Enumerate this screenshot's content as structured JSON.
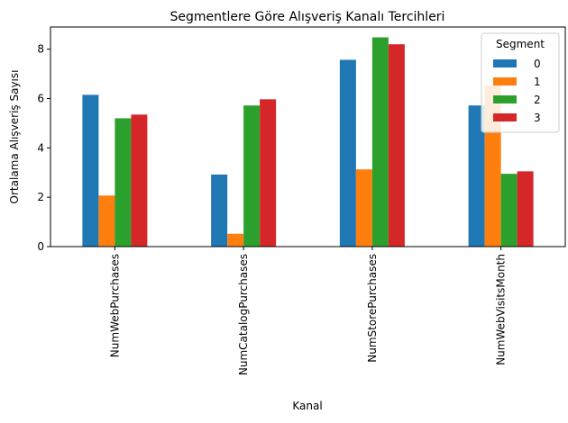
{
  "chart_data": {
    "type": "bar",
    "title": "Segmentlere Göre Alışveriş Kanalı Tercihleri",
    "xlabel": "Kanal",
    "ylabel": "Ortalama Alışveriş Sayısı",
    "categories": [
      "NumWebPurchases",
      "NumCatalogPurchases",
      "NumStorePurchases",
      "NumWebVisitsMonth"
    ],
    "series": [
      {
        "name": "0",
        "color": "#1f77b4",
        "values": [
          6.15,
          2.92,
          7.57,
          5.72
        ]
      },
      {
        "name": "1",
        "color": "#ff7f0e",
        "values": [
          2.07,
          0.52,
          3.13,
          6.52
        ]
      },
      {
        "name": "2",
        "color": "#2ca02c",
        "values": [
          5.2,
          5.72,
          8.48,
          2.95
        ]
      },
      {
        "name": "3",
        "color": "#d62728",
        "values": [
          5.35,
          5.97,
          8.2,
          3.05
        ]
      }
    ],
    "ylim": [
      0,
      8.9
    ],
    "yticks": [
      0,
      2,
      4,
      6,
      8
    ],
    "grid": false,
    "legend": {
      "title": "Segment",
      "placement": "top-right"
    }
  }
}
